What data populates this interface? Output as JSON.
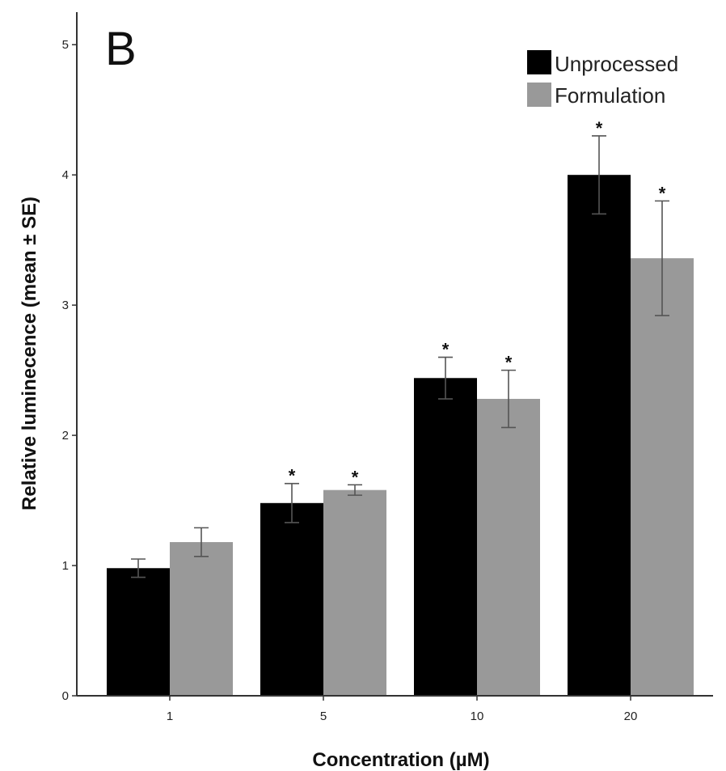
{
  "chart_data": {
    "type": "bar",
    "panel_label": "B",
    "xlabel": "Concentration (µM)",
    "ylabel": "Relative luminecence (mean ± SE)",
    "categories": [
      "1",
      "5",
      "10",
      "20"
    ],
    "ylim": [
      0,
      5.25
    ],
    "yticks": [
      "0",
      "1",
      "2",
      "3",
      "4",
      "5"
    ],
    "grid": false,
    "legend_position": "top-right",
    "series": [
      {
        "name": "Unprocessed",
        "color": "#000000",
        "values": [
          0.98,
          1.48,
          2.44,
          4.0
        ],
        "errors": [
          0.07,
          0.15,
          0.16,
          0.3
        ],
        "significant": [
          "",
          "*",
          "*",
          "*"
        ]
      },
      {
        "name": "Formulation",
        "color": "#999999",
        "values": [
          1.18,
          1.58,
          2.28,
          3.36
        ],
        "errors": [
          0.11,
          0.04,
          0.22,
          0.44
        ],
        "significant": [
          "",
          "*",
          "*",
          "*"
        ]
      }
    ],
    "error_bar_color": "#555555"
  }
}
